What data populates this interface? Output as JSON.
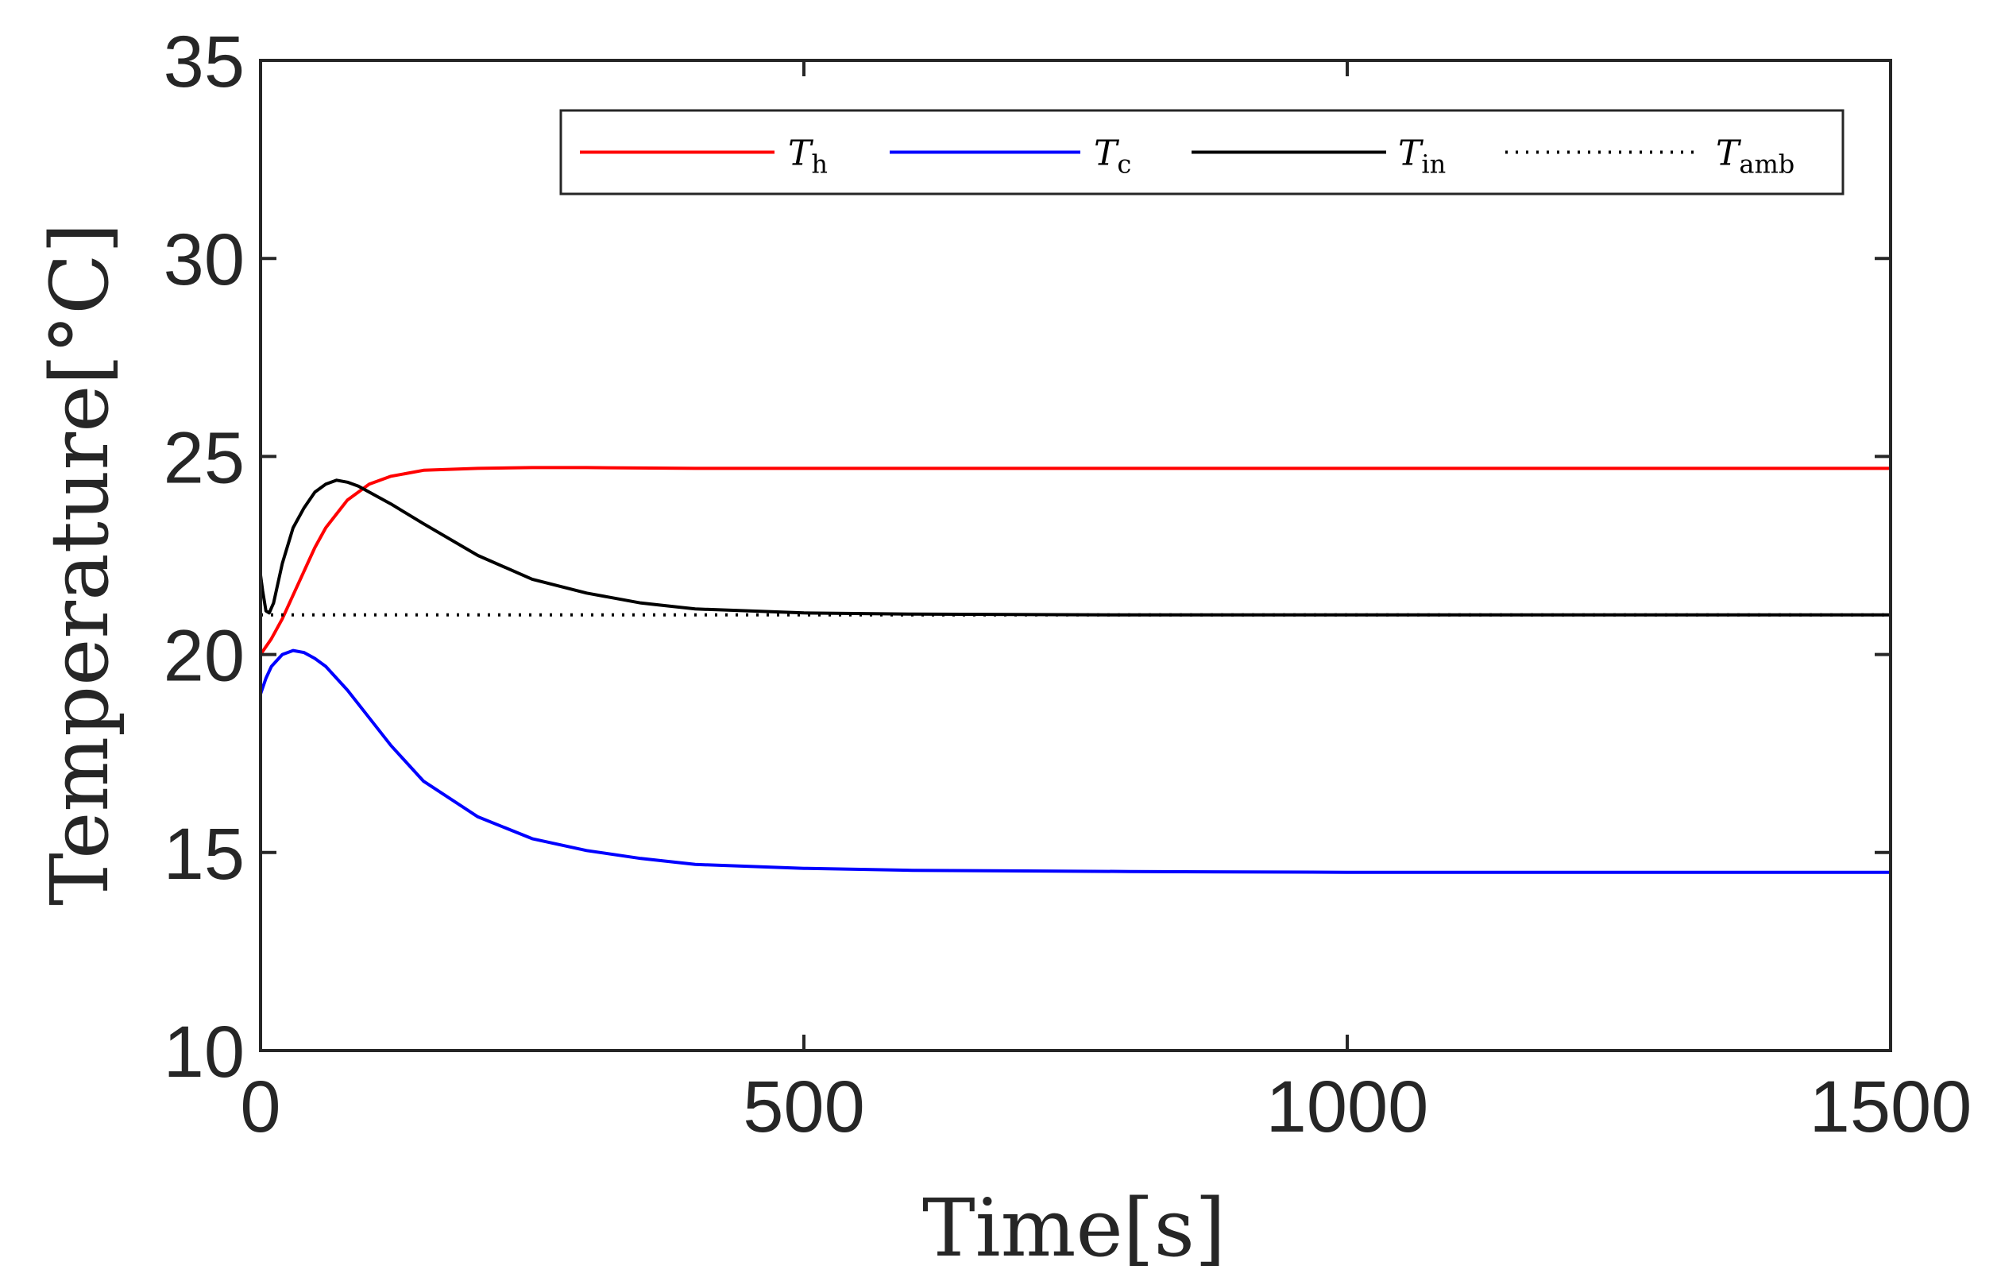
{
  "chart_data": {
    "type": "line",
    "title": "",
    "xlabel": "Time[s]",
    "ylabel": "Temperature[°C]",
    "xlim": [
      0,
      1500
    ],
    "ylim": [
      10,
      35
    ],
    "xticks": [
      0,
      500,
      1000,
      1500
    ],
    "yticks": [
      10,
      15,
      20,
      25,
      30,
      35
    ],
    "xtick_labels": [
      "0",
      "500",
      "1000",
      "1500"
    ],
    "ytick_labels": [
      "10",
      "15",
      "20",
      "25",
      "30",
      "35"
    ],
    "grid": false,
    "legend_position": "top-right",
    "series": [
      {
        "name": "T_h",
        "label_main": "T",
        "label_sub": "h",
        "color": "#ff0000",
        "dash": "solid",
        "x": [
          0,
          10,
          20,
          30,
          40,
          50,
          60,
          80,
          100,
          120,
          150,
          200,
          250,
          300,
          400,
          600,
          1000,
          1500
        ],
        "y": [
          20.0,
          20.4,
          20.9,
          21.5,
          22.1,
          22.7,
          23.2,
          23.9,
          24.3,
          24.5,
          24.65,
          24.7,
          24.72,
          24.72,
          24.7,
          24.7,
          24.7,
          24.7
        ]
      },
      {
        "name": "T_c",
        "label_main": "T",
        "label_sub": "c",
        "color": "#0000ff",
        "dash": "solid",
        "x": [
          0,
          5,
          10,
          20,
          30,
          40,
          50,
          60,
          80,
          100,
          120,
          150,
          200,
          250,
          300,
          350,
          400,
          500,
          600,
          800,
          1000,
          1500
        ],
        "y": [
          19.0,
          19.4,
          19.7,
          20.0,
          20.1,
          20.05,
          19.9,
          19.7,
          19.1,
          18.4,
          17.7,
          16.8,
          15.9,
          15.35,
          15.05,
          14.85,
          14.7,
          14.6,
          14.55,
          14.52,
          14.5,
          14.5
        ]
      },
      {
        "name": "T_in",
        "label_main": "T",
        "label_sub": "in",
        "color": "#000000",
        "dash": "solid",
        "x": [
          0,
          2,
          5,
          8,
          12,
          20,
          30,
          40,
          50,
          60,
          70,
          80,
          90,
          100,
          120,
          150,
          200,
          250,
          300,
          350,
          400,
          500,
          600,
          800,
          1000,
          1500
        ],
        "y": [
          22.0,
          21.6,
          21.1,
          21.05,
          21.3,
          22.3,
          23.2,
          23.7,
          24.1,
          24.3,
          24.4,
          24.35,
          24.25,
          24.1,
          23.8,
          23.3,
          22.5,
          21.9,
          21.55,
          21.3,
          21.15,
          21.05,
          21.02,
          21.0,
          21.0,
          21.0
        ]
      },
      {
        "name": "T_amb",
        "label_main": "T",
        "label_sub": "amb",
        "color": "#000000",
        "dash": "dotted",
        "x": [
          0,
          1500
        ],
        "y": [
          21.0,
          21.0
        ]
      }
    ]
  }
}
